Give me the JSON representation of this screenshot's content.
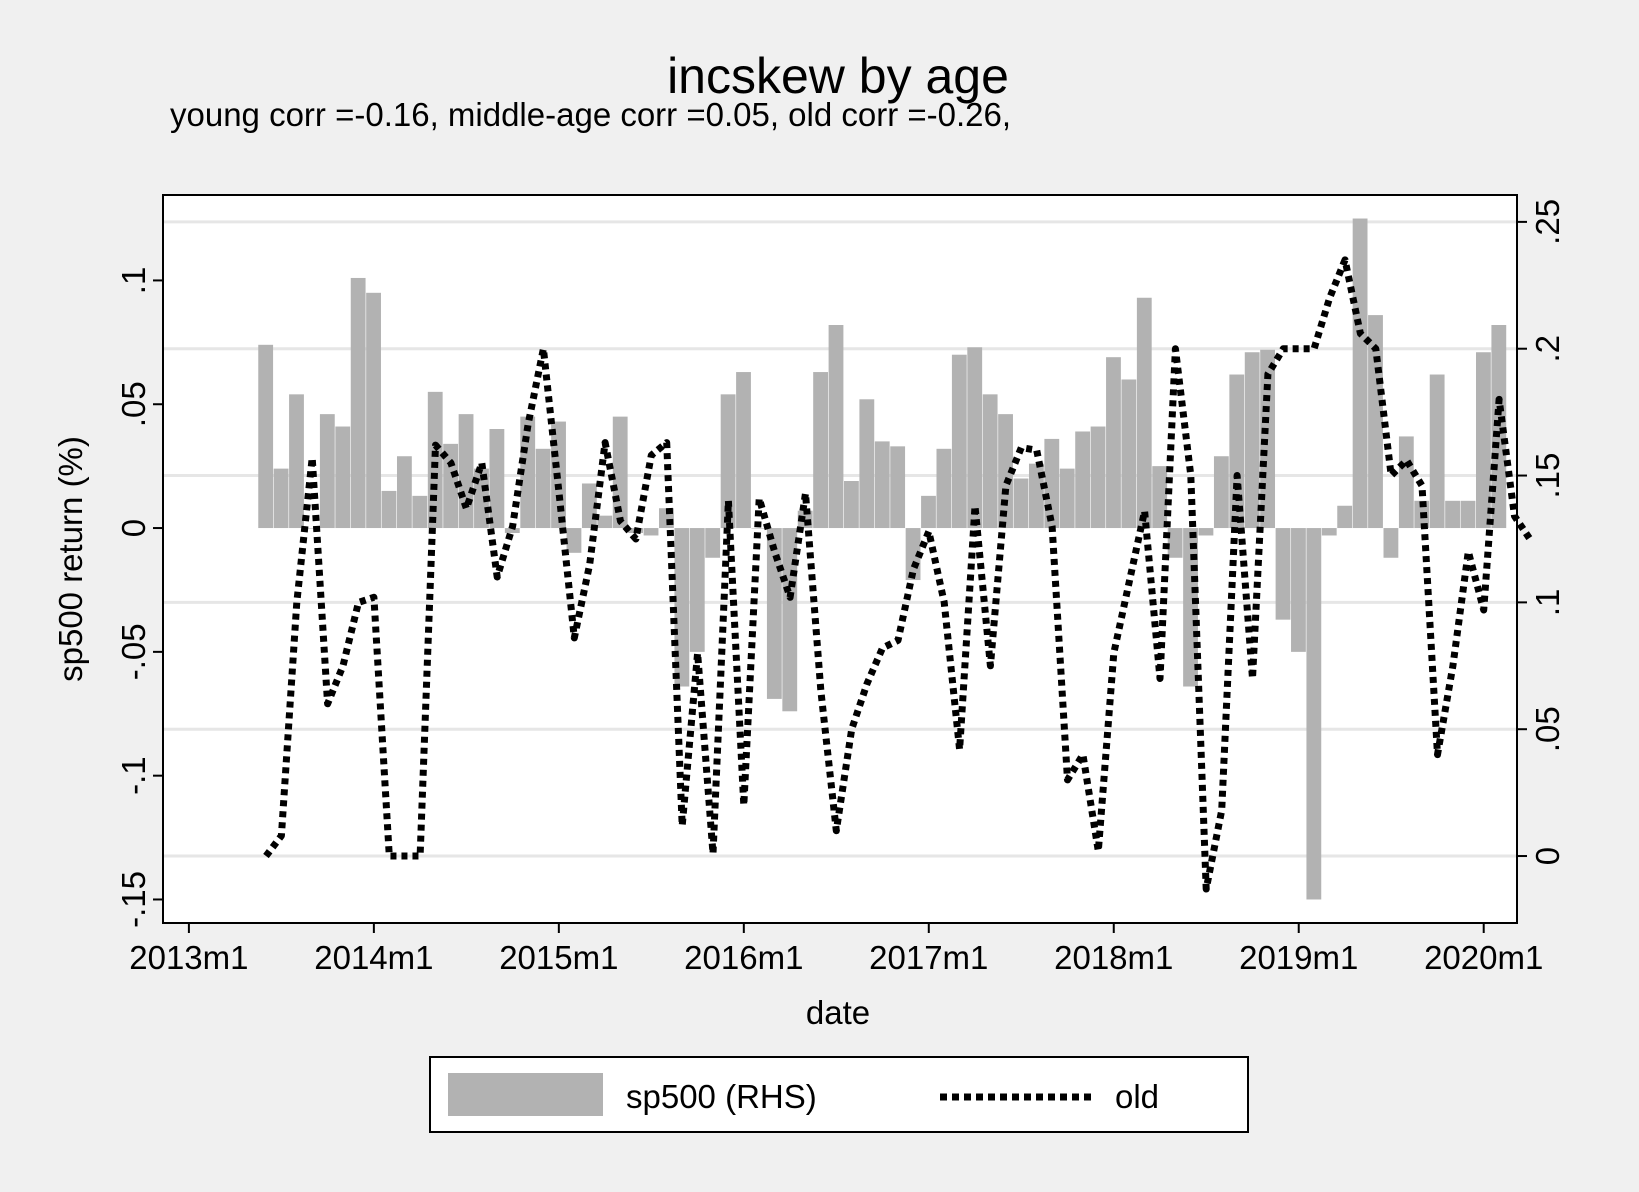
{
  "chart_data": {
    "type": "bar+line",
    "title": "incskew by age",
    "subtitle": "young corr =-0.16, middle-age corr =0.05, old corr =-0.26,",
    "xlabel": "date",
    "ylabel_left": "sp500 return (%)",
    "ylabel_right": "",
    "x_ticks": [
      {
        "label": "2013m1",
        "value": 2013.0
      },
      {
        "label": "2014m1",
        "value": 2014.0
      },
      {
        "label": "2015m1",
        "value": 2015.0
      },
      {
        "label": "2016m1",
        "value": 2016.0
      },
      {
        "label": "2017m1",
        "value": 2017.0
      },
      {
        "label": "2018m1",
        "value": 2018.0
      },
      {
        "label": "2019m1",
        "value": 2019.0
      },
      {
        "label": "2020m1",
        "value": 2020.0
      }
    ],
    "xlim": [
      2012.86,
      2020.18
    ],
    "left_axis": {
      "ylim": [
        -0.1595,
        0.1345
      ],
      "ticks": [
        {
          "label": "-.15",
          "value": -0.15
        },
        {
          "label": "-.1",
          "value": -0.1
        },
        {
          "label": "-.05",
          "value": -0.05
        },
        {
          "label": "0",
          "value": 0
        },
        {
          "label": ".05",
          "value": 0.05
        },
        {
          "label": ".1",
          "value": 0.1
        }
      ]
    },
    "right_axis": {
      "ylim": [
        -0.0264,
        0.2606
      ],
      "ticks": [
        {
          "label": "0",
          "value": 0
        },
        {
          "label": ".05",
          "value": 0.05
        },
        {
          "label": ".1",
          "value": 0.1
        },
        {
          "label": ".15",
          "value": 0.15
        },
        {
          "label": ".2",
          "value": 0.2
        },
        {
          "label": ".25",
          "value": 0.25
        }
      ]
    },
    "bar_color": "#b2b2b2",
    "line_color": "#000000",
    "legend": {
      "placement": "bottom",
      "entries": [
        "sp500 (RHS)",
        "old"
      ]
    },
    "series": [
      {
        "name": "sp500 (RHS)",
        "axis": "left",
        "type": "bar",
        "start_year": 2013,
        "start_month": 6,
        "values": [
          0.074,
          0.024,
          0.054,
          0.0,
          0.046,
          0.041,
          0.101,
          0.095,
          0.015,
          0.029,
          0.013,
          0.055,
          0.034,
          0.046,
          0.024,
          0.04,
          -0.002,
          0.045,
          0.032,
          0.043,
          -0.01,
          0.018,
          0.005,
          0.045,
          -0.002,
          -0.003,
          0.008,
          -0.064,
          -0.05,
          -0.012,
          0.054,
          0.063,
          0.0,
          -0.069,
          -0.074,
          0.007,
          0.063,
          0.082,
          0.019,
          0.052,
          0.035,
          0.033,
          -0.021,
          0.013,
          0.032,
          0.07,
          0.073,
          0.054,
          0.046,
          0.02,
          0.026,
          0.036,
          0.024,
          0.039,
          0.041,
          0.069,
          0.06,
          0.093,
          0.025,
          -0.012,
          -0.064,
          -0.003,
          0.029,
          0.062,
          0.071,
          0.072,
          -0.037,
          -0.05,
          -0.15,
          -0.003,
          0.009,
          0.125,
          0.086,
          -0.012,
          0.037,
          0.011,
          0.062,
          0.011,
          0.011,
          0.071,
          0.082
        ]
      },
      {
        "name": "old",
        "axis": "right",
        "type": "line",
        "dash": "dotted",
        "start_year": 2013,
        "start_month": 6,
        "values": [
          0.0,
          0.008,
          0.1,
          0.157,
          0.06,
          0.075,
          0.1,
          0.102,
          0.0,
          0.0,
          0.0,
          0.162,
          0.155,
          0.137,
          0.155,
          0.11,
          0.13,
          0.17,
          0.2,
          0.144,
          0.086,
          0.115,
          0.163,
          0.132,
          0.125,
          0.158,
          0.163,
          0.012,
          0.08,
          0.001,
          0.14,
          0.02,
          0.141,
          0.12,
          0.102,
          0.143,
          0.065,
          0.01,
          0.05,
          0.068,
          0.082,
          0.085,
          0.113,
          0.128,
          0.1,
          0.042,
          0.138,
          0.075,
          0.146,
          0.161,
          0.16,
          0.13,
          0.03,
          0.04,
          0.002,
          0.08,
          0.108,
          0.136,
          0.07,
          0.2,
          0.15,
          -0.013,
          0.018,
          0.15,
          0.07,
          0.19,
          0.2,
          0.2,
          0.2,
          0.22,
          0.235,
          0.206,
          0.2,
          0.15,
          0.156,
          0.146,
          0.04,
          0.075,
          0.12,
          0.097,
          0.18,
          0.134,
          0.125
        ]
      }
    ]
  }
}
